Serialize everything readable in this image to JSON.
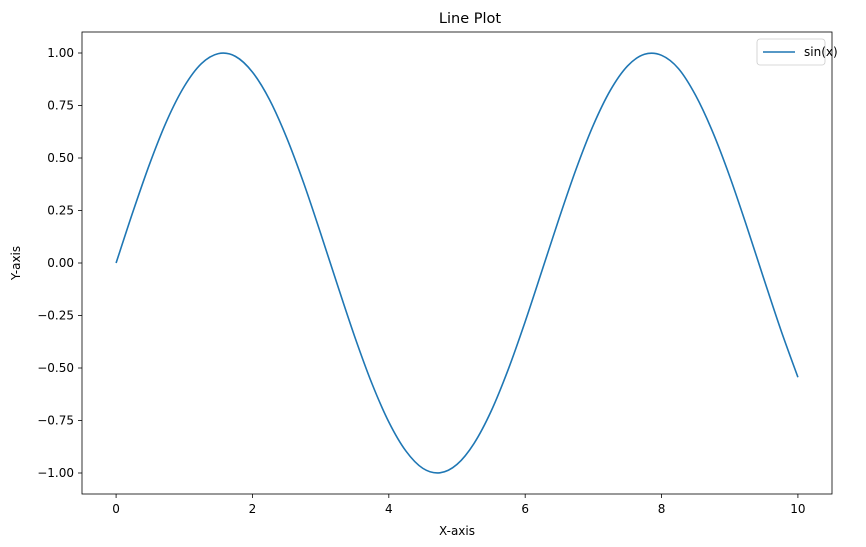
{
  "chart_data": {
    "type": "line",
    "title": "Line Plot",
    "xlabel": "X-axis",
    "ylabel": "Y-axis",
    "xlim": [
      -0.5,
      10.5
    ],
    "ylim": [
      -1.1,
      1.1
    ],
    "xticks": [
      0,
      2,
      4,
      6,
      8,
      10
    ],
    "xtick_labels": [
      "0",
      "2",
      "4",
      "6",
      "8",
      "10"
    ],
    "yticks": [
      -1.0,
      -0.75,
      -0.5,
      -0.25,
      0.0,
      0.25,
      0.5,
      0.75,
      1.0
    ],
    "ytick_labels": [
      "−1.00",
      "−0.75",
      "−0.50",
      "−0.25",
      "0.00",
      "0.25",
      "0.50",
      "0.75",
      "1.00"
    ],
    "grid": false,
    "legend_position": "top-right",
    "series": [
      {
        "name": "sin(x)",
        "color": "#1f77b4",
        "x": [
          0,
          0.25,
          0.5,
          0.75,
          1,
          1.25,
          1.5,
          1.75,
          2,
          2.25,
          2.5,
          2.75,
          3,
          3.25,
          3.5,
          3.75,
          4,
          4.25,
          4.5,
          4.75,
          5,
          5.25,
          5.5,
          5.75,
          6,
          6.25,
          6.5,
          6.75,
          7,
          7.25,
          7.5,
          7.75,
          8,
          8.25,
          8.5,
          8.75,
          9,
          9.25,
          9.5,
          9.75,
          10
        ],
        "y": [
          0.0,
          0.247,
          0.479,
          0.682,
          0.841,
          0.949,
          0.997,
          0.984,
          0.909,
          0.778,
          0.598,
          0.382,
          0.141,
          -0.108,
          -0.351,
          -0.572,
          -0.757,
          -0.895,
          -0.978,
          -0.999,
          -0.959,
          -0.859,
          -0.706,
          -0.508,
          -0.279,
          -0.033,
          0.215,
          0.45,
          0.657,
          0.823,
          0.938,
          0.994,
          0.989,
          0.925,
          0.798,
          0.624,
          0.412,
          0.174,
          -0.075,
          -0.319,
          -0.544
        ]
      }
    ]
  }
}
